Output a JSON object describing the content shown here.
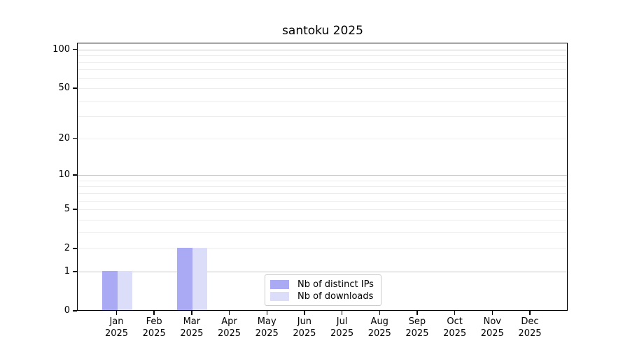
{
  "figure": {
    "background": "#ffffff"
  },
  "colors": {
    "axis": "#000000",
    "grid_major": "#c7c7c7",
    "grid_minor": "#ededed",
    "legend_border": "#cccccc",
    "text": "#000000"
  },
  "chart_data": {
    "type": "bar",
    "title": "santoku 2025",
    "categories": [
      "Jan 2025",
      "Feb 2025",
      "Mar 2025",
      "Apr 2025",
      "May 2025",
      "Jun 2025",
      "Jul 2025",
      "Aug 2025",
      "Sep 2025",
      "Oct 2025",
      "Nov 2025",
      "Dec 2025"
    ],
    "series": [
      {
        "name": "Nb of distinct IPs",
        "color": "#a9aaf3",
        "values": [
          1,
          0,
          2,
          0,
          0,
          0,
          0,
          0,
          0,
          0,
          0,
          0
        ]
      },
      {
        "name": "Nb of downloads",
        "color": "#dcddf9",
        "values": [
          1,
          0,
          2,
          0,
          0,
          0,
          0,
          0,
          0,
          0,
          0,
          0
        ]
      }
    ],
    "xlabel": "",
    "ylabel": "",
    "y_scale": "log1p",
    "ylim": [
      0,
      113
    ],
    "y_ticks": [
      0,
      1,
      2,
      5,
      10,
      20,
      50,
      100
    ],
    "y_gridlines": {
      "major": [
        1,
        10,
        100
      ],
      "minor": [
        2,
        3,
        4,
        5,
        6,
        7,
        8,
        9,
        20,
        30,
        40,
        50,
        60,
        70,
        80,
        90
      ]
    },
    "grid": "horizontal",
    "legend_position": "lower-center-inside"
  }
}
